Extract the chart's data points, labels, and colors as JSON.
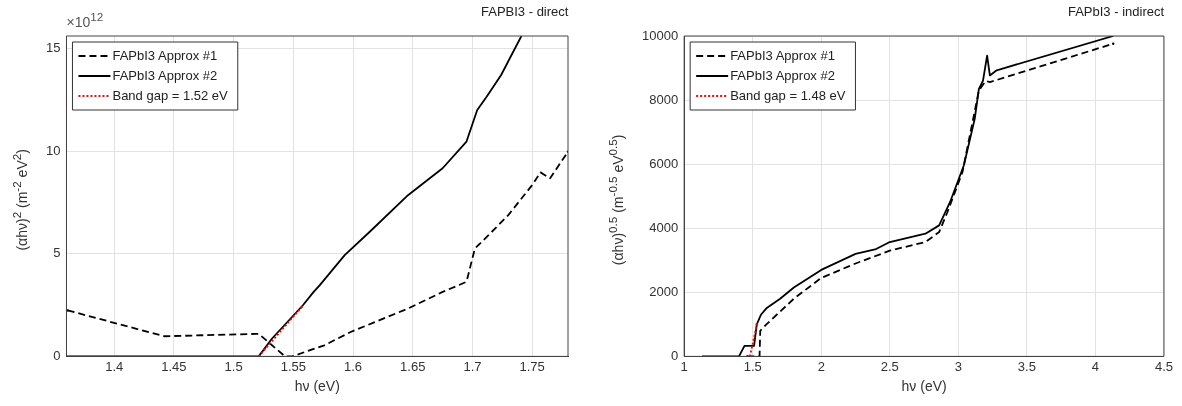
{
  "chart_data": [
    {
      "type": "line",
      "title": "FAPBI3 - direct",
      "xlabel": "hν (eV)",
      "ylabel": "(αhν)$^{2}$ (m$^{-2}$ eV$^{2}$)",
      "annotations": [
        "×10$^{12}$"
      ],
      "xlim": [
        1.36,
        1.78
      ],
      "xticks": [
        1.4,
        1.45,
        1.5,
        1.55,
        1.6,
        1.65,
        1.7,
        1.75
      ],
      "ylim": [
        0,
        15.6
      ],
      "yticks": [
        0,
        5,
        10,
        15
      ],
      "grid": true,
      "legend": "top left",
      "marker": "none",
      "series": [
        {
          "name": "FAPbI3 Approx #1",
          "color": "#000000",
          "line_style": "dashed",
          "x": [
            1.361,
            1.442,
            1.521,
            1.543,
            1.549,
            1.576,
            1.598,
            1.646,
            1.675,
            1.695,
            1.702,
            1.712,
            1.73,
            1.75,
            1.757,
            1.765,
            1.78
          ],
          "values": [
            2.24,
            0.98,
            1.1,
            0,
            0,
            0.54,
            1.19,
            2.33,
            3.14,
            3.63,
            5.25,
            5.82,
            6.88,
            8.34,
            8.96,
            8.67,
            9.97
          ]
        },
        {
          "name": "FAPbI3 Approx #2",
          "color": "#000000",
          "line_style": "solid",
          "x": [
            1.36,
            1.521,
            1.532,
            1.558,
            1.567,
            1.572,
            1.593,
            1.614,
            1.646,
            1.675,
            1.695,
            1.704,
            1.712,
            1.724,
            1.741
          ],
          "values": [
            0,
            0,
            0.86,
            2.49,
            3.14,
            3.46,
            4.93,
            6.07,
            7.85,
            9.16,
            10.46,
            12.0,
            12.65,
            13.7,
            15.6
          ]
        },
        {
          "name": "Band gap = 1.52 eV",
          "color": "#ff0000",
          "line_style": "dotted",
          "x": [
            1.521,
            1.557
          ],
          "values": [
            0,
            2.4
          ]
        }
      ]
    },
    {
      "type": "line",
      "title": "FAPbI3 - indirect",
      "xlabel": "hν (eV)",
      "ylabel": "(αhν)$^{0.5}$ (m$^{-0.5}$ eV$^{0.5}$)",
      "xlim": [
        1,
        4.5
      ],
      "xticks": [
        1,
        1.5,
        2,
        2.5,
        3,
        3.5,
        4,
        4.5
      ],
      "ylim": [
        0,
        10000
      ],
      "yticks": [
        0,
        2000,
        4000,
        6000,
        8000,
        10000
      ],
      "grid": true,
      "legend": "top left",
      "marker": "none",
      "series": [
        {
          "name": "FAPbI3 Approx #1",
          "color": "#000000",
          "line_style": "dashed",
          "x": [
            1.46,
            1.55,
            1.555,
            1.6,
            1.7,
            1.8,
            2.0,
            2.25,
            2.5,
            2.76,
            2.86,
            2.92,
            3.03,
            3.15,
            3.2,
            3.23,
            4.13
          ],
          "values": [
            0,
            0,
            800,
            1000,
            1400,
            1800,
            2450,
            2900,
            3300,
            3570,
            3880,
            4500,
            5750,
            8300,
            8600,
            8560,
            9760
          ]
        },
        {
          "name": "FAPbI3 Approx #2",
          "color": "#000000",
          "line_style": "solid",
          "x": [
            1.13,
            1.4,
            1.44,
            1.51,
            1.53,
            1.56,
            1.6,
            1.7,
            1.8,
            2.0,
            2.25,
            2.4,
            2.5,
            2.76,
            2.86,
            2.94,
            3.04,
            3.12,
            3.15,
            3.18,
            3.21,
            3.23,
            3.28,
            4.13
          ],
          "values": [
            0,
            0,
            330,
            330,
            1000,
            1300,
            1500,
            1800,
            2150,
            2700,
            3200,
            3350,
            3570,
            3830,
            4090,
            4820,
            5960,
            7420,
            8350,
            8610,
            9390,
            8770,
            8930,
            10000
          ]
        },
        {
          "name": "Band gap = 1.48 eV",
          "color": "#ff0000",
          "line_style": "dotted",
          "x": [
            1.48,
            1.53
          ],
          "values": [
            0,
            1000
          ]
        }
      ]
    }
  ]
}
